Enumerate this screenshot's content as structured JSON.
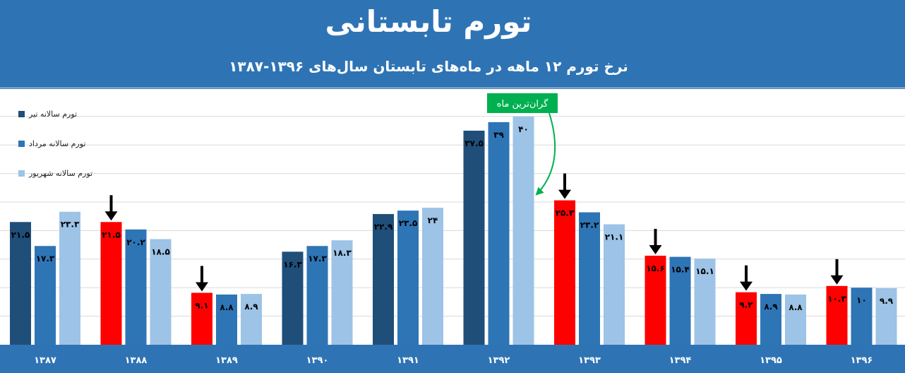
{
  "title": "تورم تابستانی",
  "subtitle": "نرخ تورم ۱۲ ماهه در ماه‌های تابستان سال‌های ۱۳۹۶-۱۳۸۷",
  "annotation": "گران‌ترین ماه",
  "colors": {
    "header": "#2e74b5",
    "tir": "#1f4e79",
    "mordad": "#2e75b6",
    "shahrivar": "#9dc3e6",
    "highlight": "#ff0000",
    "annotation": "#00b050"
  },
  "chart_data": {
    "type": "bar",
    "title": "تورم تابستانی",
    "subtitle": "نرخ تورم ۱۲ ماهه در ماه‌های تابستان سال‌های ۱۳۹۶-۱۳۸۷",
    "xlabel": "",
    "ylabel": "",
    "ylim": [
      0,
      45
    ],
    "grid": true,
    "legend": "top-left",
    "categories": [
      "۱۳۸۷",
      "۱۳۸۸",
      "۱۳۸۹",
      "۱۳۹۰",
      "۱۳۹۱",
      "۱۳۹۲",
      "۱۳۹۳",
      "۱۳۹۴",
      "۱۳۹۵",
      "۱۳۹۶"
    ],
    "series": [
      {
        "name": "تورم سالانه تیر",
        "values": [
          21.5,
          21.5,
          9.1,
          16.3,
          22.9,
          37.5,
          25.3,
          15.6,
          9.2,
          10.3
        ],
        "labels": [
          "۲۱.۵",
          "۲۱.۵",
          "۹.۱",
          "۱۶.۳",
          "۲۲.۹",
          "۳۷.۵",
          "۲۵.۳",
          "۱۵.۶",
          "۹.۲",
          "۱۰.۳"
        ]
      },
      {
        "name": "تورم سالانه مرداد",
        "values": [
          17.3,
          20.2,
          8.8,
          17.3,
          23.5,
          39,
          23.2,
          15.4,
          8.9,
          10
        ],
        "labels": [
          "۱۷.۳",
          "۲۰.۲",
          "۸.۸",
          "۱۷.۳",
          "۲۳.۵",
          "۳۹",
          "۲۳.۲",
          "۱۵.۴",
          "۸.۹",
          "۱۰"
        ]
      },
      {
        "name": "تورم سالانه شهریور",
        "values": [
          23.3,
          18.5,
          8.9,
          18.3,
          24,
          40,
          21.1,
          15.1,
          8.8,
          9.9
        ],
        "labels": [
          "۲۳.۳",
          "۱۸.۵",
          "۸.۹",
          "۱۸.۳",
          "۲۴",
          "۴۰",
          "۲۱.۱",
          "۱۵.۱",
          "۸.۸",
          "۹.۹"
        ]
      }
    ],
    "highlighted": [
      {
        "category": "۱۳۸۸",
        "series": "تورم سالانه تیر"
      },
      {
        "category": "۱۳۸۹",
        "series": "تورم سالانه تیر"
      },
      {
        "category": "۱۳۹۳",
        "series": "تورم سالانه تیر"
      },
      {
        "category": "۱۳۹۴",
        "series": "تورم سالانه تیر"
      },
      {
        "category": "۱۳۹۵",
        "series": "تورم سالانه تیر"
      },
      {
        "category": "۱۳۹۶",
        "series": "تورم سالانه تیر"
      }
    ],
    "annotations": [
      {
        "text": "گران‌ترین ماه",
        "category": "۱۳۹۲",
        "series": "تورم سالانه شهریور"
      }
    ]
  }
}
